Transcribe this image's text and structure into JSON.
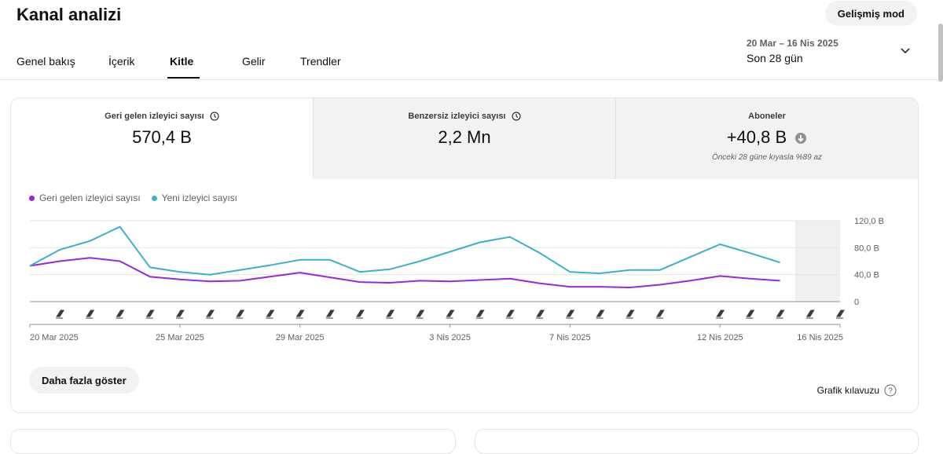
{
  "header": {
    "title": "Kanal analizi",
    "advanced_mode": "Gelişmiş mod"
  },
  "tabs": [
    {
      "label": "Genel bakış",
      "active": false
    },
    {
      "label": "İçerik",
      "active": false
    },
    {
      "label": "Kitle",
      "active": true
    },
    {
      "label": "Gelir",
      "active": false
    },
    {
      "label": "Trendler",
      "active": false
    }
  ],
  "date_picker": {
    "range": "20 Mar – 16 Nis 2025",
    "period": "Son 28 gün"
  },
  "metrics": [
    {
      "label": "Geri gelen izleyici sayısı",
      "value": "570,4 B",
      "icon": "clock-icon"
    },
    {
      "label": "Benzersiz izleyici sayısı",
      "value": "2,2 Mn",
      "icon": "clock-icon"
    },
    {
      "label": "Aboneler",
      "value": "+40,8 B",
      "icon": "arrow-down-circle-icon",
      "note": "Önceki 28 güne kıyasla %89 az"
    }
  ],
  "chart_data": {
    "type": "line",
    "series": [
      {
        "name": "Geri gelen izleyici sayısı",
        "color": "#9c27d9",
        "values": [
          53,
          60,
          65,
          60,
          37,
          33,
          30,
          31,
          37,
          43,
          36,
          29,
          28,
          31,
          30,
          32,
          34,
          27,
          22,
          22,
          21,
          25,
          31,
          38,
          34,
          31
        ]
      },
      {
        "name": "Yeni izleyici sayısı",
        "color": "#3ab0cc",
        "values": [
          53,
          77,
          90,
          111,
          51,
          44,
          40,
          47,
          54,
          62,
          62,
          44,
          48,
          60,
          74,
          88,
          96,
          72,
          44,
          42,
          47,
          47,
          66,
          85,
          72,
          58
        ]
      }
    ],
    "x_tick_labels": [
      "20 Mar 2025",
      "25 Mar 2025",
      "29 Mar 2025",
      "3 Nis 2025",
      "7 Nis 2025",
      "12 Nis 2025",
      "16 Nis 2025"
    ],
    "y_tick_labels": [
      "120,0 B",
      "80,0 B",
      "40,0 B",
      "0"
    ],
    "ylim": [
      0,
      120
    ],
    "grid": true,
    "legend_position": "top-left",
    "shaded_region": "last partial day"
  },
  "footer": {
    "more_button": "Daha fazla göster",
    "guide_link": "Grafik kılavuzu"
  }
}
